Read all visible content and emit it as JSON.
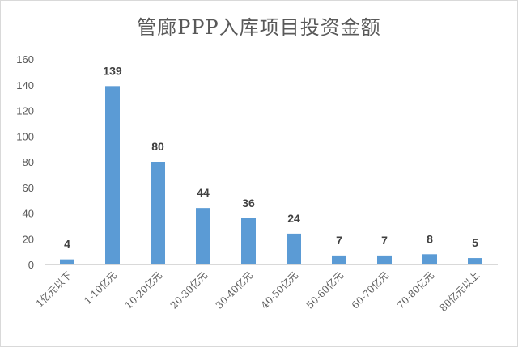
{
  "chart_data": {
    "type": "bar",
    "title": "管廊PPP入库项目投资金额",
    "categories": [
      "1亿元以下",
      "1-10亿元",
      "10-20亿元",
      "20-30亿元",
      "30-40亿元",
      "40-50亿元",
      "50-60亿元",
      "60-70亿元",
      "70-80亿元",
      "80亿元以上"
    ],
    "values": [
      4,
      139,
      80,
      44,
      36,
      24,
      7,
      7,
      8,
      5
    ],
    "ylim": [
      0,
      160
    ],
    "yticks": [
      "0",
      "20",
      "40",
      "60",
      "80",
      "100",
      "120",
      "140",
      "160"
    ],
    "data_labels": [
      "4",
      "139",
      "80",
      "44",
      "36",
      "24",
      "7",
      "7",
      "8",
      "5"
    ],
    "bar_color": "#5b9bd5",
    "grid": false,
    "legend": "none"
  }
}
